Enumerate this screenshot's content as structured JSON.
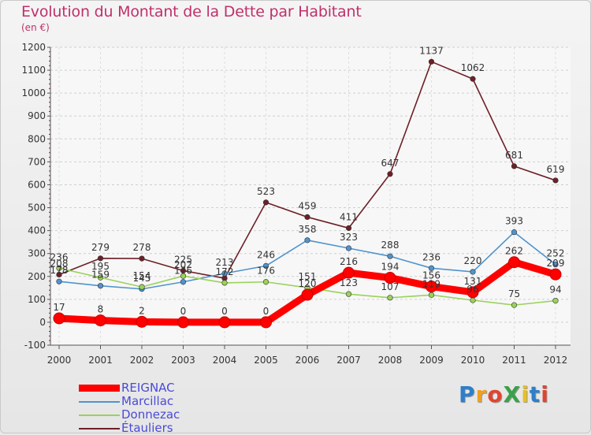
{
  "title": "Evolution du Montant de la Dette par Habitant",
  "subtitle": "(en €)",
  "logo": "ProXiti",
  "chart_data": {
    "type": "line",
    "x": [
      "2000",
      "2001",
      "2002",
      "2003",
      "2004",
      "2005",
      "2006",
      "2007",
      "2008",
      "2009",
      "2010",
      "2011",
      "2012"
    ],
    "ylim": [
      -100,
      1200
    ],
    "yticks": [
      -100,
      0,
      100,
      200,
      300,
      400,
      500,
      600,
      700,
      800,
      900,
      1000,
      1100,
      1200
    ],
    "grid": "dashed horizontal",
    "legend_position": "bottom-left",
    "series": [
      {
        "name": "Étauliers",
        "color": "#6e1f27",
        "values": [
          208,
          279,
          278,
          225,
          192,
          523,
          459,
          411,
          647,
          1137,
          1062,
          681,
          619
        ],
        "labels": [
          "208",
          "279",
          "278",
          "225",
          "",
          "523",
          "459",
          "411",
          "647",
          "1137",
          "1062",
          "681",
          "619"
        ]
      },
      {
        "name": "Marcillac",
        "color": "#4f94cd",
        "values": [
          178,
          159,
          145,
          176,
          213,
          246,
          358,
          323,
          288,
          236,
          220,
          393,
          252
        ],
        "labels": [
          "178",
          "159",
          "145",
          "176",
          "213",
          "246",
          "358",
          "323",
          "288",
          "236",
          "220",
          "393",
          "252"
        ]
      },
      {
        "name": "Donnezac",
        "color": "#9ad25a",
        "values": [
          236,
          195,
          154,
          202,
          172,
          176,
          151,
          123,
          107,
          119,
          96,
          75,
          94
        ],
        "labels": [
          "236",
          "195",
          "154",
          "202",
          "172",
          "176",
          "151",
          "123",
          "107",
          "119",
          "96",
          "75",
          "94"
        ]
      },
      {
        "name": "REIGNAC",
        "color": "#ff0000",
        "values": [
          17,
          8,
          2,
          0,
          0,
          0,
          120,
          216,
          194,
          156,
          131,
          262,
          209
        ],
        "labels": [
          "17",
          "8",
          "2",
          "0",
          "0",
          "0",
          "120",
          "216",
          "194",
          "156",
          "131",
          "262",
          "209"
        ]
      }
    ]
  },
  "legend": [
    {
      "name": "REIGNAC",
      "color": "#ff0000",
      "thickness": 9
    },
    {
      "name": "Marcillac",
      "color": "#4f94cd",
      "thickness": 2
    },
    {
      "name": "Donnezac",
      "color": "#9ad25a",
      "thickness": 2
    },
    {
      "name": "Étauliers",
      "color": "#6e1f27",
      "thickness": 2
    }
  ]
}
